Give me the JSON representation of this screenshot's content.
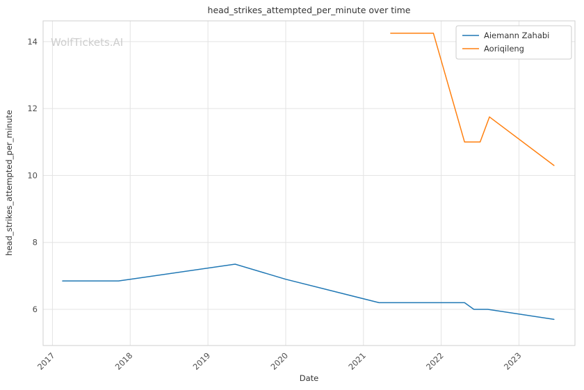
{
  "watermark": "WolfTickets.AI",
  "chart_data": {
    "type": "line",
    "title": "head_strikes_attempted_per_minute over time",
    "xlabel": "Date",
    "ylabel": "head_strikes_attempted_per_minute",
    "xlim": [
      2016.88,
      2023.72
    ],
    "ylim": [
      4.92,
      14.62
    ],
    "xticks": [
      2017,
      2018,
      2019,
      2020,
      2021,
      2022,
      2023
    ],
    "yticks": [
      6,
      8,
      10,
      12,
      14
    ],
    "grid": true,
    "legend_position": "upper right",
    "series": [
      {
        "name": "Aiemann Zahabi",
        "color": "#1f77b4",
        "points": [
          [
            2017.13,
            6.85
          ],
          [
            2017.85,
            6.85
          ],
          [
            2018.0,
            6.9
          ],
          [
            2019.35,
            7.35
          ],
          [
            2020.0,
            6.9
          ],
          [
            2021.2,
            6.2
          ],
          [
            2022.3,
            6.2
          ],
          [
            2022.42,
            6.0
          ],
          [
            2022.6,
            6.0
          ],
          [
            2023.45,
            5.7
          ]
        ]
      },
      {
        "name": "Aoriqileng",
        "color": "#ff7f0e",
        "points": [
          [
            2021.35,
            14.25
          ],
          [
            2021.9,
            14.25
          ],
          [
            2022.3,
            11.0
          ],
          [
            2022.5,
            11.0
          ],
          [
            2022.62,
            11.75
          ],
          [
            2023.45,
            10.3
          ]
        ]
      }
    ]
  },
  "colors": {
    "grid": "#e3e3e3",
    "spine": "#cfcfcf",
    "tick_text": "#4d4d4d",
    "watermark": "#c9c9c9",
    "legend_border": "#cccccc"
  }
}
